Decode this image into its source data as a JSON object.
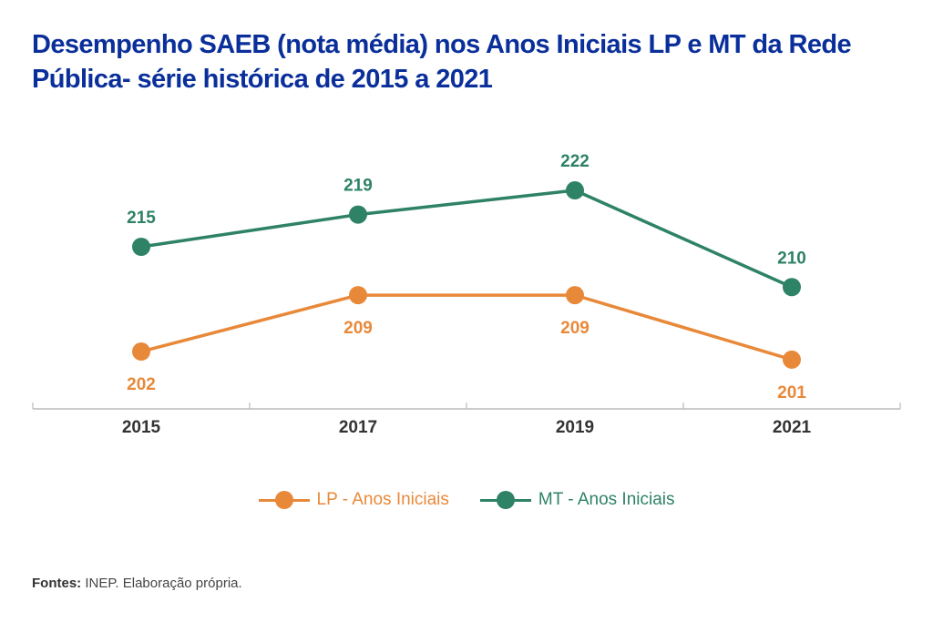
{
  "chart_data": {
    "type": "line",
    "title": "Desempenho SAEB (nota média) nos Anos Iniciais LP e MT da Rede Pública- série histórica de 2015 a 2021",
    "xlabel": "",
    "ylabel": "",
    "categories": [
      "2015",
      "2017",
      "2019",
      "2021"
    ],
    "series": [
      {
        "name": "LP - Anos Iniciais",
        "color": "#e8893a",
        "values": [
          202,
          209,
          209,
          201
        ],
        "label_position": "below"
      },
      {
        "name": "MT - Anos Iniciais",
        "color": "#2e8266",
        "values": [
          215,
          219,
          222,
          210
        ],
        "label_position": "above"
      }
    ],
    "grid": false,
    "y_axis_visible": false,
    "legend_position": "bottom-center",
    "axis_color": "#bbbbbb",
    "tick_label_color": "#333333"
  },
  "source": {
    "label": "Fontes:",
    "text": " INEP. Elaboração própria."
  }
}
